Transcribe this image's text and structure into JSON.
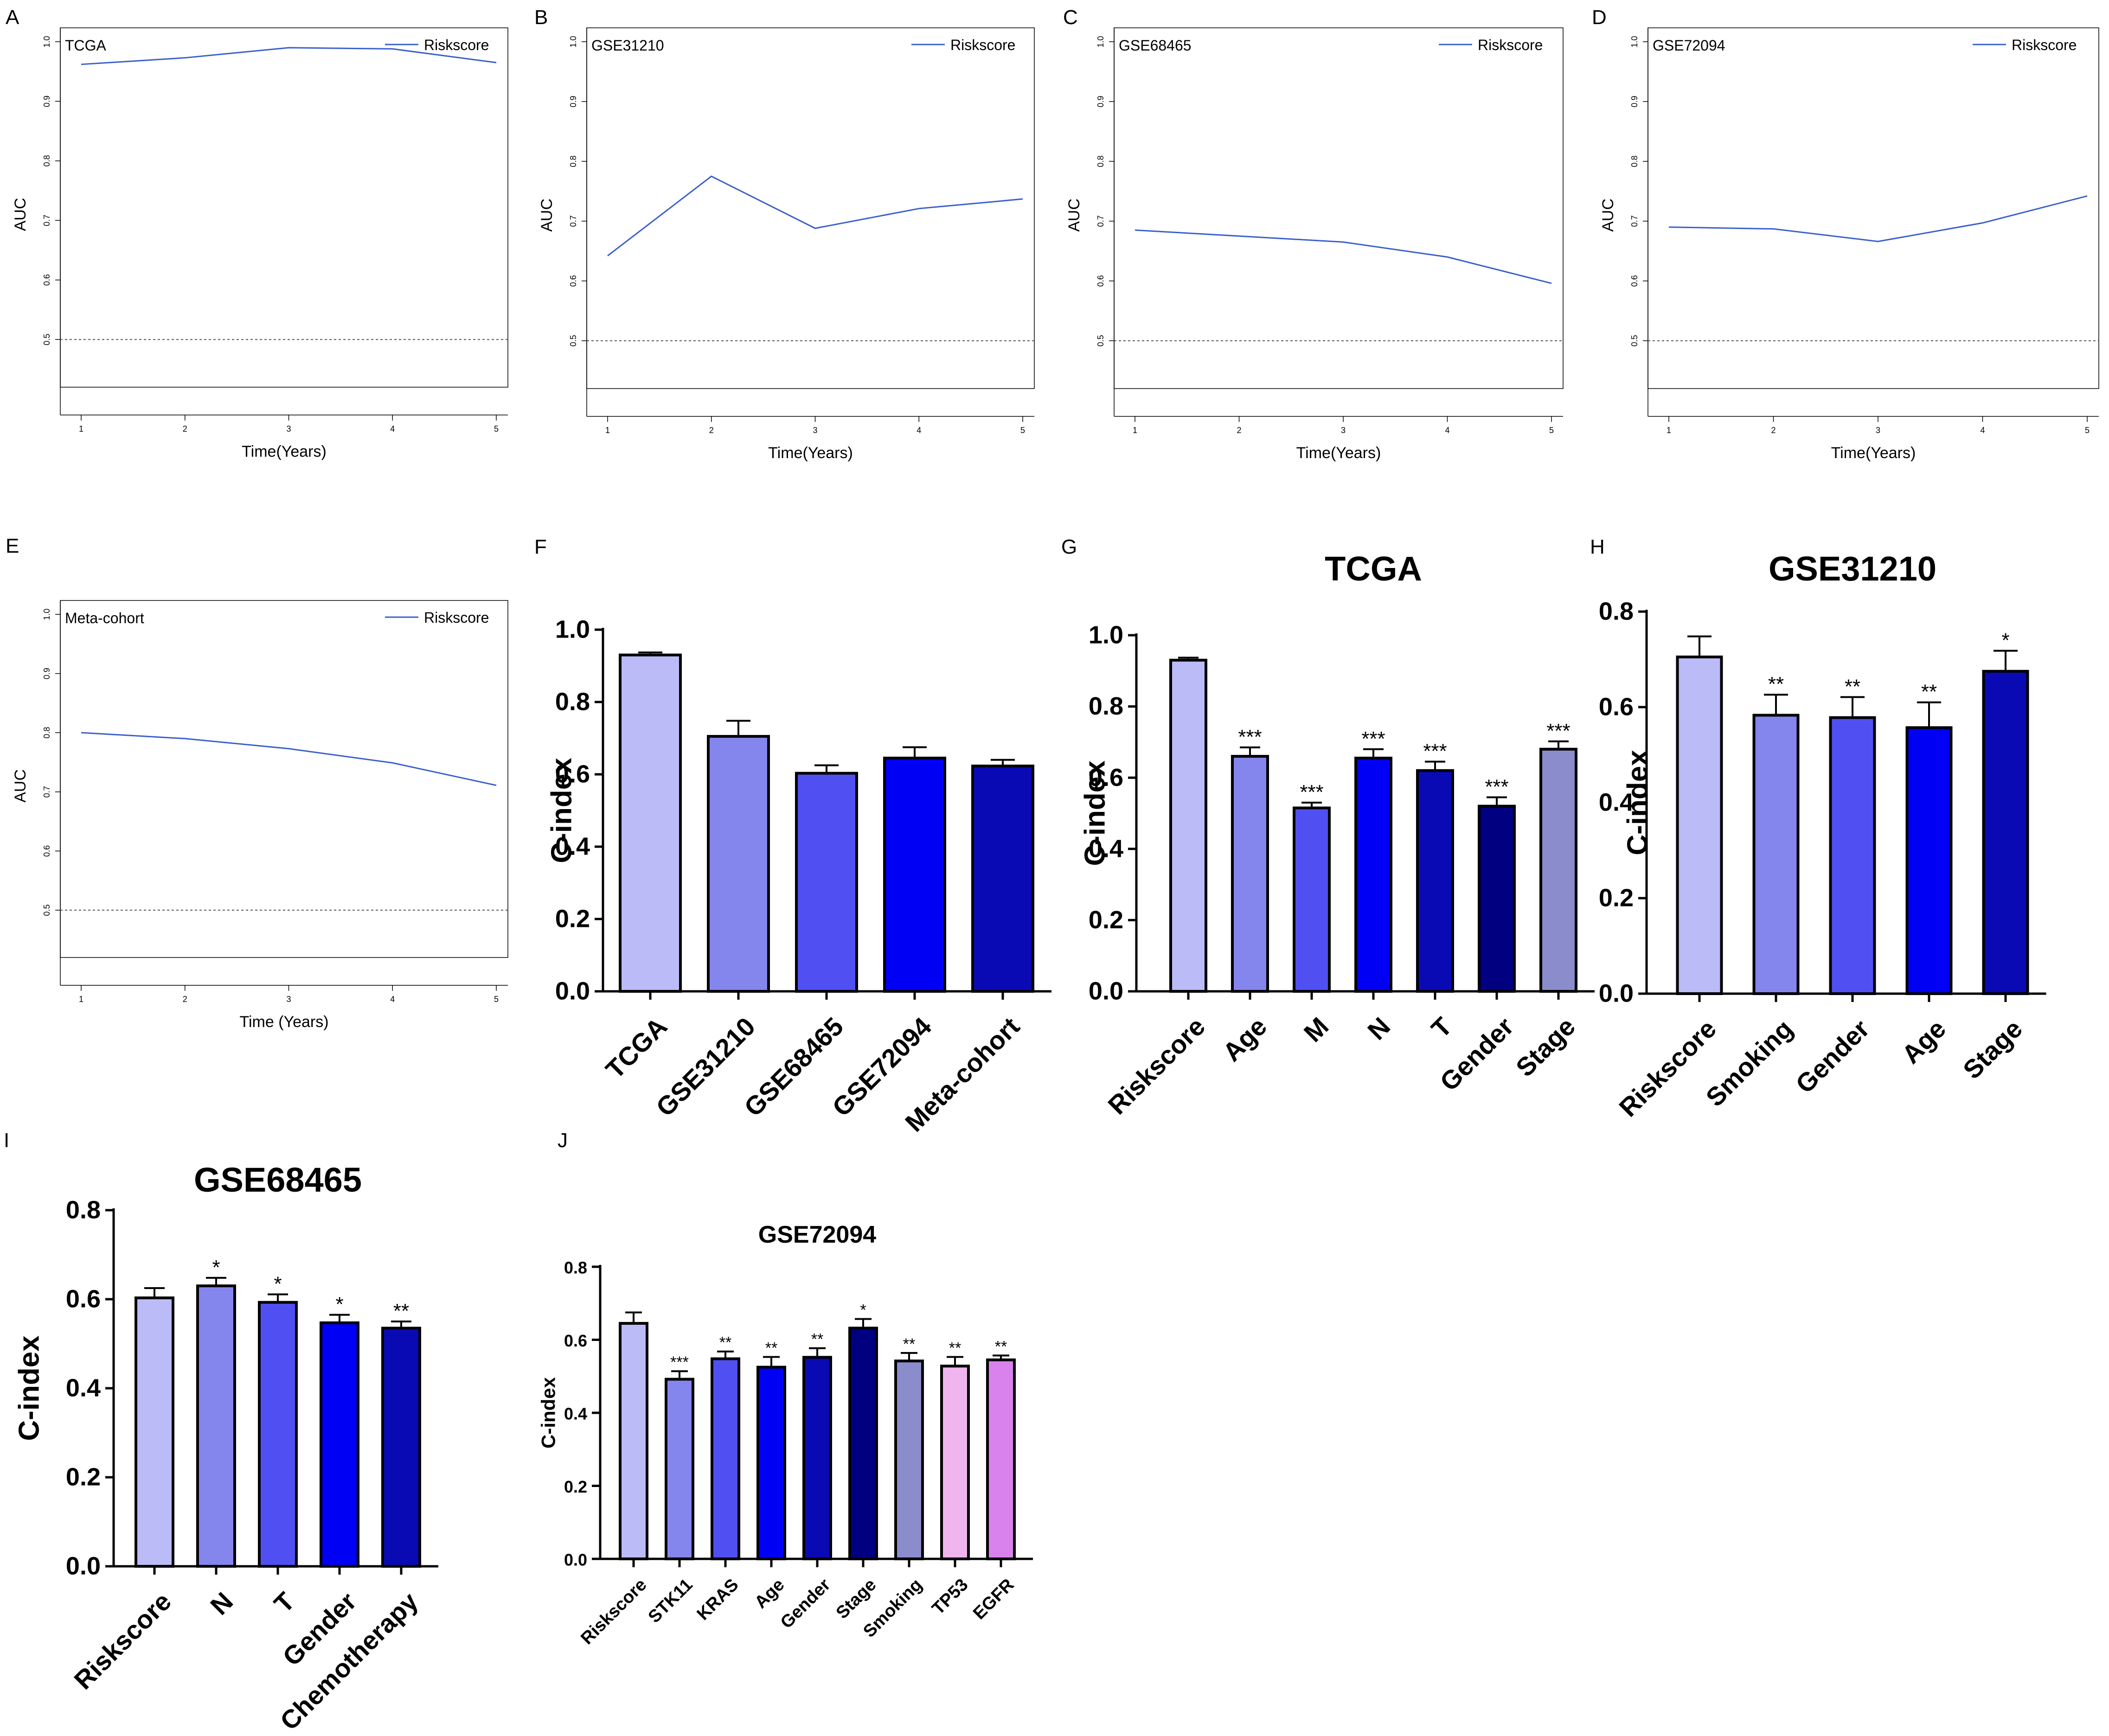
{
  "figure": {
    "panel_letters": [
      "A",
      "B",
      "C",
      "D",
      "E",
      "F",
      "G",
      "H",
      "I",
      "J"
    ]
  },
  "colors": {
    "line": "#3a5fcd",
    "reference": "#555555",
    "bar_outline": "#000000"
  },
  "chart_data": [
    {
      "panel": "A",
      "type": "line",
      "inset_title": "TCGA",
      "xlabel": "Time(Years)",
      "ylabel": "AUC",
      "x": [
        1,
        2,
        3,
        4,
        5
      ],
      "xticks": [
        "1",
        "2",
        "3",
        "4",
        "5"
      ],
      "yticks": [
        "0.5",
        "0.6",
        "0.7",
        "0.8",
        "0.9",
        "1.0"
      ],
      "ylim": [
        0.42,
        1.0
      ],
      "reference_line": 0.5,
      "series": [
        {
          "name": "Riskscore",
          "values": [
            0.962,
            0.973,
            0.99,
            0.988,
            0.965
          ]
        }
      ]
    },
    {
      "panel": "B",
      "type": "line",
      "inset_title": "GSE31210",
      "xlabel": "Time(Years)",
      "ylabel": "AUC",
      "x": [
        1,
        2,
        3,
        4,
        5
      ],
      "xticks": [
        "1",
        "2",
        "3",
        "4",
        "5"
      ],
      "yticks": [
        "0.5",
        "0.6",
        "0.7",
        "0.8",
        "0.9",
        "1.0"
      ],
      "ylim": [
        0.42,
        1.0
      ],
      "reference_line": 0.5,
      "series": [
        {
          "name": "Riskscore",
          "values": [
            0.642,
            0.775,
            0.688,
            0.721,
            0.737
          ]
        }
      ]
    },
    {
      "panel": "C",
      "type": "line",
      "inset_title": "GSE68465",
      "xlabel": "Time(Years)",
      "ylabel": "AUC",
      "x": [
        1,
        2,
        3,
        4,
        5
      ],
      "xticks": [
        "1",
        "2",
        "3",
        "4",
        "5"
      ],
      "yticks": [
        "0.5",
        "0.6",
        "0.7",
        "0.8",
        "0.9",
        "1.0"
      ],
      "ylim": [
        0.42,
        1.0
      ],
      "reference_line": 0.5,
      "series": [
        {
          "name": "Riskscore",
          "values": [
            0.685,
            0.675,
            0.665,
            0.64,
            0.596
          ]
        }
      ]
    },
    {
      "panel": "D",
      "type": "line",
      "inset_title": "GSE72094",
      "xlabel": "Time(Years)",
      "ylabel": "AUC",
      "x": [
        1,
        2,
        3,
        4,
        5
      ],
      "xticks": [
        "1",
        "2",
        "3",
        "4",
        "5"
      ],
      "yticks": [
        "0.5",
        "0.6",
        "0.7",
        "0.8",
        "0.9",
        "1.0"
      ],
      "ylim": [
        0.42,
        1.0
      ],
      "reference_line": 0.5,
      "series": [
        {
          "name": "Riskscore",
          "values": [
            0.69,
            0.687,
            0.666,
            0.697,
            0.742
          ]
        }
      ]
    },
    {
      "panel": "E",
      "type": "line",
      "inset_title": "Meta-cohort",
      "xlabel": "Time (Years)",
      "ylabel": "AUC",
      "x": [
        1,
        2,
        3,
        4,
        5
      ],
      "xticks": [
        "1",
        "2",
        "3",
        "4",
        "5"
      ],
      "yticks": [
        "0.5",
        "0.6",
        "0.7",
        "0.8",
        "0.9",
        "1.0"
      ],
      "ylim": [
        0.42,
        1.0
      ],
      "reference_line": 0.5,
      "series": [
        {
          "name": "Riskscore",
          "values": [
            0.8,
            0.79,
            0.773,
            0.749,
            0.711
          ]
        }
      ]
    },
    {
      "panel": "F",
      "type": "bar",
      "title": "",
      "ylabel": "C-index",
      "ylim": [
        0,
        1.0
      ],
      "yticks": [
        "0.0",
        "0.2",
        "0.4",
        "0.6",
        "0.8",
        "1.0"
      ],
      "categories": [
        "TCGA",
        "GSE31210",
        "GSE68465",
        "GSE72094",
        "Meta-cohort"
      ],
      "values": [
        0.93,
        0.705,
        0.603,
        0.645,
        0.623
      ],
      "errors": [
        0.007,
        0.043,
        0.022,
        0.03,
        0.017
      ],
      "significance": [
        "",
        "",
        "",
        "",
        ""
      ],
      "colors": [
        "#bbbbf8",
        "#8585ee",
        "#5050f2",
        "#0000f5",
        "#0a0ab4"
      ]
    },
    {
      "panel": "G",
      "type": "bar",
      "title": "TCGA",
      "ylabel": "C-index",
      "ylim": [
        0,
        1.0
      ],
      "yticks": [
        "0.0",
        "0.2",
        "0.4",
        "0.6",
        "0.8",
        "1.0"
      ],
      "categories": [
        "Riskscore",
        "Age",
        "M",
        "N",
        "T",
        "Gender",
        "Stage"
      ],
      "values": [
        0.93,
        0.66,
        0.515,
        0.655,
        0.62,
        0.52,
        0.68
      ],
      "errors": [
        0.007,
        0.025,
        0.015,
        0.025,
        0.025,
        0.025,
        0.022
      ],
      "significance": [
        "",
        "***",
        "***",
        "***",
        "***",
        "***",
        "***"
      ],
      "colors": [
        "#bbbbf8",
        "#8585ee",
        "#5050f2",
        "#0000f5",
        "#0a0ab4",
        "#000080",
        "#8a8ccc"
      ]
    },
    {
      "panel": "H",
      "type": "bar",
      "title": "GSE31210",
      "ylabel": "C-index",
      "ylim": [
        0,
        0.8
      ],
      "yticks": [
        "0.0",
        "0.2",
        "0.4",
        "0.6",
        "0.8"
      ],
      "categories": [
        "Riskscore",
        "Smoking",
        "Gender",
        "Age",
        "Stage"
      ],
      "values": [
        0.705,
        0.583,
        0.578,
        0.557,
        0.675
      ],
      "errors": [
        0.043,
        0.043,
        0.043,
        0.053,
        0.043
      ],
      "significance": [
        "",
        "**",
        "**",
        "**",
        "*"
      ],
      "colors": [
        "#bbbbf8",
        "#8585ee",
        "#5050f2",
        "#0000f5",
        "#0a0ab4"
      ]
    },
    {
      "panel": "I",
      "type": "bar",
      "title": "GSE68465",
      "ylabel": "C-index",
      "ylim": [
        0,
        0.8
      ],
      "yticks": [
        "0.0",
        "0.2",
        "0.4",
        "0.6",
        "0.8"
      ],
      "categories": [
        "Riskscore",
        "N",
        "T",
        "Gender",
        "Chemotherapy"
      ],
      "values": [
        0.603,
        0.63,
        0.593,
        0.547,
        0.535
      ],
      "errors": [
        0.022,
        0.018,
        0.018,
        0.018,
        0.015
      ],
      "significance": [
        "",
        "*",
        "*",
        "*",
        "**"
      ],
      "colors": [
        "#bbbbf8",
        "#8585ee",
        "#5050f2",
        "#0000f5",
        "#0a0ab4"
      ]
    },
    {
      "panel": "J",
      "type": "bar",
      "title": "GSE72094",
      "ylabel": "C-index",
      "ylim": [
        0,
        0.8
      ],
      "yticks": [
        "0.0",
        "0.2",
        "0.4",
        "0.6",
        "0.8"
      ],
      "categories": [
        "Riskscore",
        "STK11",
        "KRAS",
        "Age",
        "Gender",
        "Stage",
        "Smoking",
        "TP53",
        "EGFR"
      ],
      "values": [
        0.645,
        0.492,
        0.548,
        0.525,
        0.552,
        0.632,
        0.542,
        0.528,
        0.545
      ],
      "errors": [
        0.03,
        0.022,
        0.02,
        0.028,
        0.025,
        0.025,
        0.022,
        0.025,
        0.012
      ],
      "significance": [
        "",
        "***",
        "**",
        "**",
        "**",
        "*",
        "**",
        "**",
        "**"
      ],
      "colors": [
        "#bbbbf8",
        "#8585ee",
        "#5050f2",
        "#0000f5",
        "#0a0ab4",
        "#000080",
        "#8a8ccc",
        "#f0b4ee",
        "#d982ee"
      ]
    }
  ]
}
